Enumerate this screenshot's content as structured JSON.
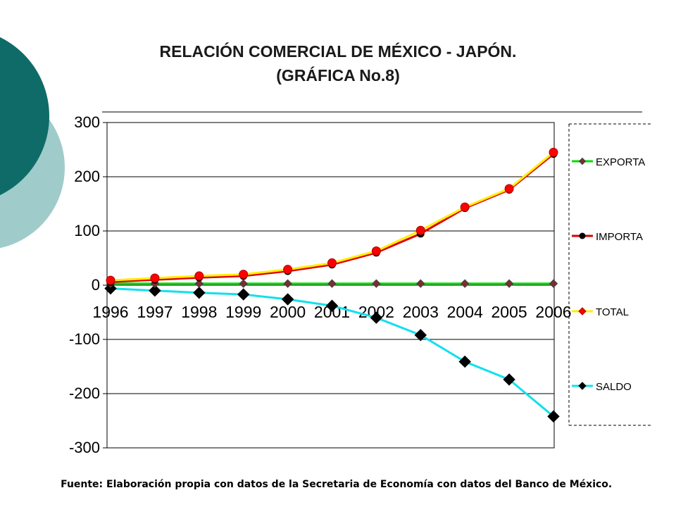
{
  "slide": {
    "title_line1": "RELACIÓN COMERCIAL DE MÉXICO -  JAPÓN.",
    "title_line2": "(GRÁFICA No.8)",
    "source": "Fuente: Elaboración propia con datos de la Secretaria de Economía con datos del Banco de México.",
    "decoration_colors": [
      "#0e6b68",
      "#9fcccb"
    ]
  },
  "chart_data": {
    "type": "line",
    "title": "",
    "xlabel": "",
    "ylabel": "",
    "categories": [
      "1996",
      "1997",
      "1998",
      "1999",
      "2000",
      "2001",
      "2002",
      "2003",
      "2004",
      "2005",
      "2006"
    ],
    "ylim": [
      -300,
      300
    ],
    "yticks": [
      300,
      200,
      100,
      0,
      -100,
      -200,
      -300
    ],
    "grid": "horizontal",
    "legend_position": "right",
    "series": [
      {
        "name": "EXPORTA",
        "color": "#00dd00",
        "marker": "diamond",
        "marker_color": "#7a2f2f",
        "values": [
          3,
          3,
          3,
          3,
          3,
          3,
          3,
          3,
          3,
          3,
          3
        ]
      },
      {
        "name": "IMPORTA",
        "color": "#dd0000",
        "marker": "circle",
        "marker_color": "#000000",
        "values": [
          6,
          10,
          14,
          17,
          26,
          38,
          60,
          95,
          142,
          176,
          242
        ]
      },
      {
        "name": "TOTAL",
        "color": "#ffee00",
        "marker": "circle",
        "marker_color": "#ff0000",
        "values": [
          9,
          13,
          17,
          20,
          29,
          41,
          63,
          101,
          144,
          178,
          245
        ]
      },
      {
        "name": "SALDO",
        "color": "#11e0ee",
        "marker": "diamond",
        "marker_color": "#000000",
        "values": [
          -6,
          -10,
          -14,
          -17,
          -26,
          -38,
          -60,
          -92,
          -141,
          -174,
          -242
        ]
      }
    ]
  }
}
